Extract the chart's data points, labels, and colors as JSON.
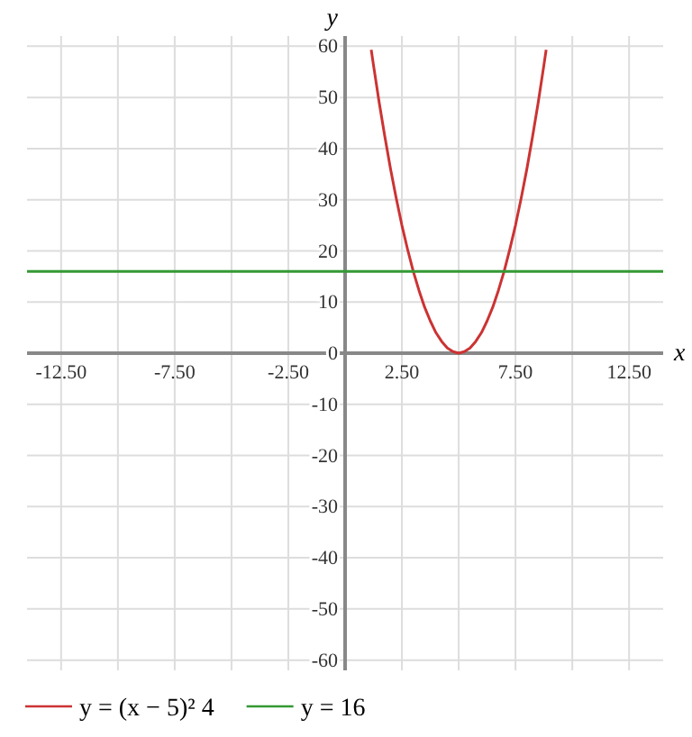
{
  "chart_data": {
    "type": "line",
    "xlabel": "x",
    "ylabel": "y",
    "xlim": [
      -14,
      14
    ],
    "ylim": [
      -62,
      62
    ],
    "xticks": [
      {
        "value": -12.5,
        "label": "-12.50"
      },
      {
        "value": -10,
        "label": null
      },
      {
        "value": -7.5,
        "label": "-7.50"
      },
      {
        "value": -5,
        "label": null
      },
      {
        "value": -2.5,
        "label": "-2.50"
      },
      {
        "value": 0,
        "label": null
      },
      {
        "value": 2.5,
        "label": "2.50"
      },
      {
        "value": 5,
        "label": null
      },
      {
        "value": 7.5,
        "label": "7.50"
      },
      {
        "value": 10,
        "label": null
      },
      {
        "value": 12.5,
        "label": "12.50"
      }
    ],
    "yticks": [
      -60,
      -50,
      -40,
      -30,
      -20,
      -10,
      0,
      10,
      20,
      30,
      40,
      50,
      60
    ],
    "grid": true,
    "legend": "bottom",
    "marker": "none",
    "line_style": "solid",
    "series": [
      {
        "name": "y = (x − 5)² 4",
        "color": "#cc3333",
        "x": [
          1.15,
          1.25,
          1.5,
          1.75,
          2,
          2.25,
          2.5,
          2.75,
          3,
          3.25,
          3.5,
          3.75,
          4,
          4.25,
          4.5,
          4.75,
          5,
          5.25,
          5.5,
          5.75,
          6,
          6.25,
          6.5,
          6.75,
          7,
          7.25,
          7.5,
          7.75,
          8,
          8.25,
          8.5,
          8.75,
          8.85
        ],
        "values": [
          59.3,
          56.3,
          49,
          42.3,
          36,
          30.3,
          25,
          20.3,
          16,
          12.3,
          9,
          6.3,
          4,
          2.3,
          1,
          0.3,
          0,
          0.3,
          1,
          2.3,
          4,
          6.3,
          9,
          12.3,
          16,
          20.3,
          25,
          30.3,
          36,
          42.3,
          49,
          56.3,
          59.3
        ]
      },
      {
        "name": "y = 16",
        "color": "#339933",
        "x": [
          -14,
          14
        ],
        "values": [
          16,
          16
        ]
      }
    ]
  }
}
